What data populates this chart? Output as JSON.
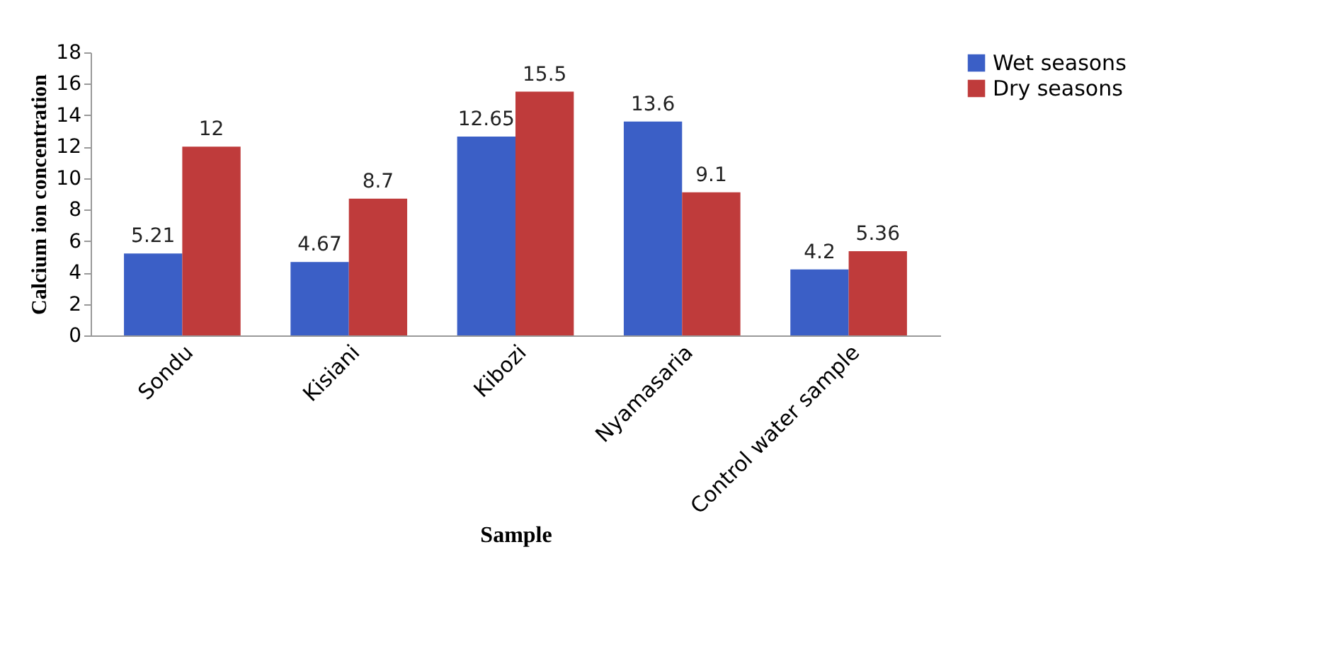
{
  "chart_data": {
    "type": "bar",
    "xlabel": "Sample",
    "ylabel": "Calcium ion concentration",
    "categories": [
      "Sondu",
      "Kisiani",
      "Kibozi",
      "Nyamasaria",
      "Control water sample"
    ],
    "series": [
      {
        "name": "Wet seasons",
        "color": "#3b5fc6",
        "values": [
          5.21,
          4.67,
          12.65,
          13.6,
          4.2
        ]
      },
      {
        "name": "Dry seasons",
        "color": "#bf3b3b",
        "values": [
          12,
          8.7,
          15.5,
          9.1,
          5.36
        ]
      }
    ],
    "ylim": [
      0,
      18
    ],
    "yticks": [
      0,
      2,
      4,
      6,
      8,
      10,
      12,
      14,
      16,
      18
    ],
    "grid": false,
    "legend": "right",
    "data_labels": true
  }
}
